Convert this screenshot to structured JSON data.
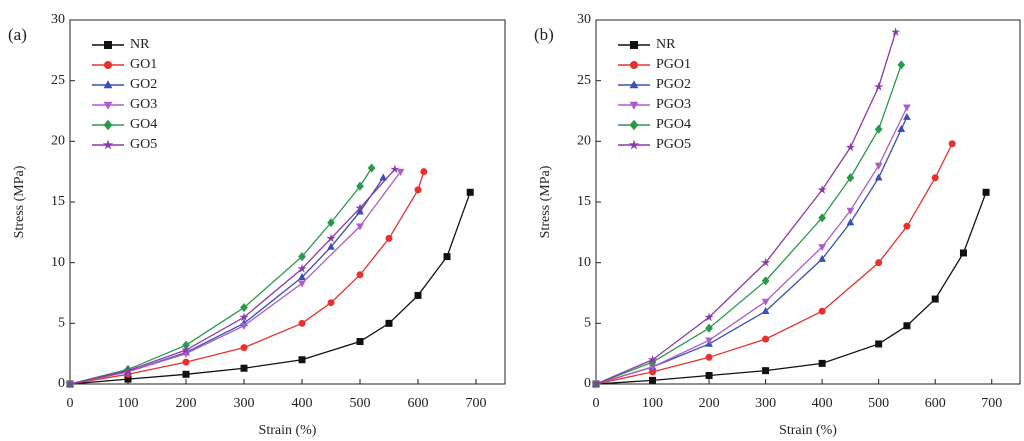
{
  "chart_data": [
    {
      "type": "line",
      "panel_label": "(a)",
      "x_label": "Strain (%)",
      "y_label": "Stress (MPa)",
      "xlim": [
        0,
        750
      ],
      "ylim": [
        0,
        30
      ],
      "xticks": [
        0,
        100,
        200,
        300,
        400,
        500,
        600,
        700
      ],
      "yticks": [
        0,
        5,
        10,
        15,
        20,
        25,
        30
      ],
      "legend": "upper-left",
      "series": [
        {
          "name": "NR",
          "color": "#111111",
          "marker": "square",
          "x": [
            0,
            100,
            200,
            300,
            400,
            500,
            550,
            600,
            650,
            690
          ],
          "values": [
            0,
            0.4,
            0.8,
            1.3,
            2.0,
            3.5,
            5.0,
            7.3,
            10.5,
            15.8
          ]
        },
        {
          "name": "GO1",
          "color": "#e8312f",
          "marker": "circle",
          "x": [
            0,
            100,
            200,
            300,
            400,
            450,
            500,
            550,
            600,
            610
          ],
          "values": [
            0,
            0.8,
            1.8,
            3.0,
            5.0,
            6.7,
            9.0,
            12.0,
            16.0,
            17.5
          ]
        },
        {
          "name": "GO2",
          "color": "#3a4fb8",
          "marker": "triangle",
          "x": [
            0,
            100,
            200,
            300,
            400,
            450,
            500,
            540
          ],
          "values": [
            0,
            1.0,
            2.6,
            5.0,
            8.8,
            11.3,
            14.2,
            17.0
          ]
        },
        {
          "name": "GO3",
          "color": "#b05cc8",
          "marker": "down-triangle",
          "x": [
            0,
            100,
            200,
            300,
            400,
            500,
            570
          ],
          "values": [
            0,
            1.0,
            2.5,
            4.8,
            8.3,
            13.0,
            17.5
          ]
        },
        {
          "name": "GO4",
          "color": "#2a9a4a",
          "marker": "diamond",
          "x": [
            0,
            100,
            200,
            300,
            400,
            450,
            500,
            520
          ],
          "values": [
            0,
            1.2,
            3.2,
            6.3,
            10.5,
            13.3,
            16.3,
            17.8
          ]
        },
        {
          "name": "GO5",
          "color": "#8a3aa8",
          "marker": "star",
          "x": [
            0,
            100,
            200,
            300,
            400,
            450,
            500,
            560
          ],
          "values": [
            0,
            1.1,
            2.8,
            5.5,
            9.5,
            12.0,
            14.5,
            17.7
          ]
        }
      ]
    },
    {
      "type": "line",
      "panel_label": "(b)",
      "x_label": "Strain (%)",
      "y_label": "Stress (MPa)",
      "xlim": [
        0,
        750
      ],
      "ylim": [
        0,
        30
      ],
      "xticks": [
        0,
        100,
        200,
        300,
        400,
        500,
        600,
        700
      ],
      "yticks": [
        0,
        5,
        10,
        15,
        20,
        25,
        30
      ],
      "legend": "upper-left",
      "series": [
        {
          "name": "NR",
          "color": "#111111",
          "marker": "square",
          "x": [
            0,
            100,
            200,
            300,
            400,
            500,
            550,
            600,
            650,
            690
          ],
          "values": [
            0,
            0.3,
            0.7,
            1.1,
            1.7,
            3.3,
            4.8,
            7.0,
            10.8,
            15.8
          ]
        },
        {
          "name": "PGO1",
          "color": "#e8312f",
          "marker": "circle",
          "x": [
            0,
            100,
            200,
            300,
            400,
            500,
            550,
            600,
            630
          ],
          "values": [
            0,
            1.0,
            2.2,
            3.7,
            6.0,
            10.0,
            13.0,
            17.0,
            19.8
          ]
        },
        {
          "name": "PGO2",
          "color": "#3a4fb8",
          "marker": "triangle",
          "x": [
            0,
            100,
            200,
            300,
            400,
            450,
            500,
            540,
            550
          ],
          "values": [
            0,
            1.4,
            3.3,
            6.0,
            10.3,
            13.3,
            17.0,
            21.0,
            22.0
          ]
        },
        {
          "name": "PGO3",
          "color": "#b05cc8",
          "marker": "down-triangle",
          "x": [
            0,
            100,
            200,
            300,
            400,
            450,
            500,
            550
          ],
          "values": [
            0,
            1.4,
            3.6,
            6.8,
            11.3,
            14.3,
            18.0,
            22.8
          ]
        },
        {
          "name": "PGO4",
          "color": "#2a9a4a",
          "marker": "diamond",
          "x": [
            0,
            100,
            200,
            300,
            400,
            450,
            500,
            540
          ],
          "values": [
            0,
            1.8,
            4.6,
            8.5,
            13.7,
            17.0,
            21.0,
            26.3
          ]
        },
        {
          "name": "PGO5",
          "color": "#8a3aa8",
          "marker": "star",
          "x": [
            0,
            100,
            200,
            300,
            400,
            450,
            500,
            530
          ],
          "values": [
            0,
            2.0,
            5.5,
            10.0,
            16.0,
            19.5,
            24.5,
            29.0
          ]
        }
      ]
    }
  ]
}
